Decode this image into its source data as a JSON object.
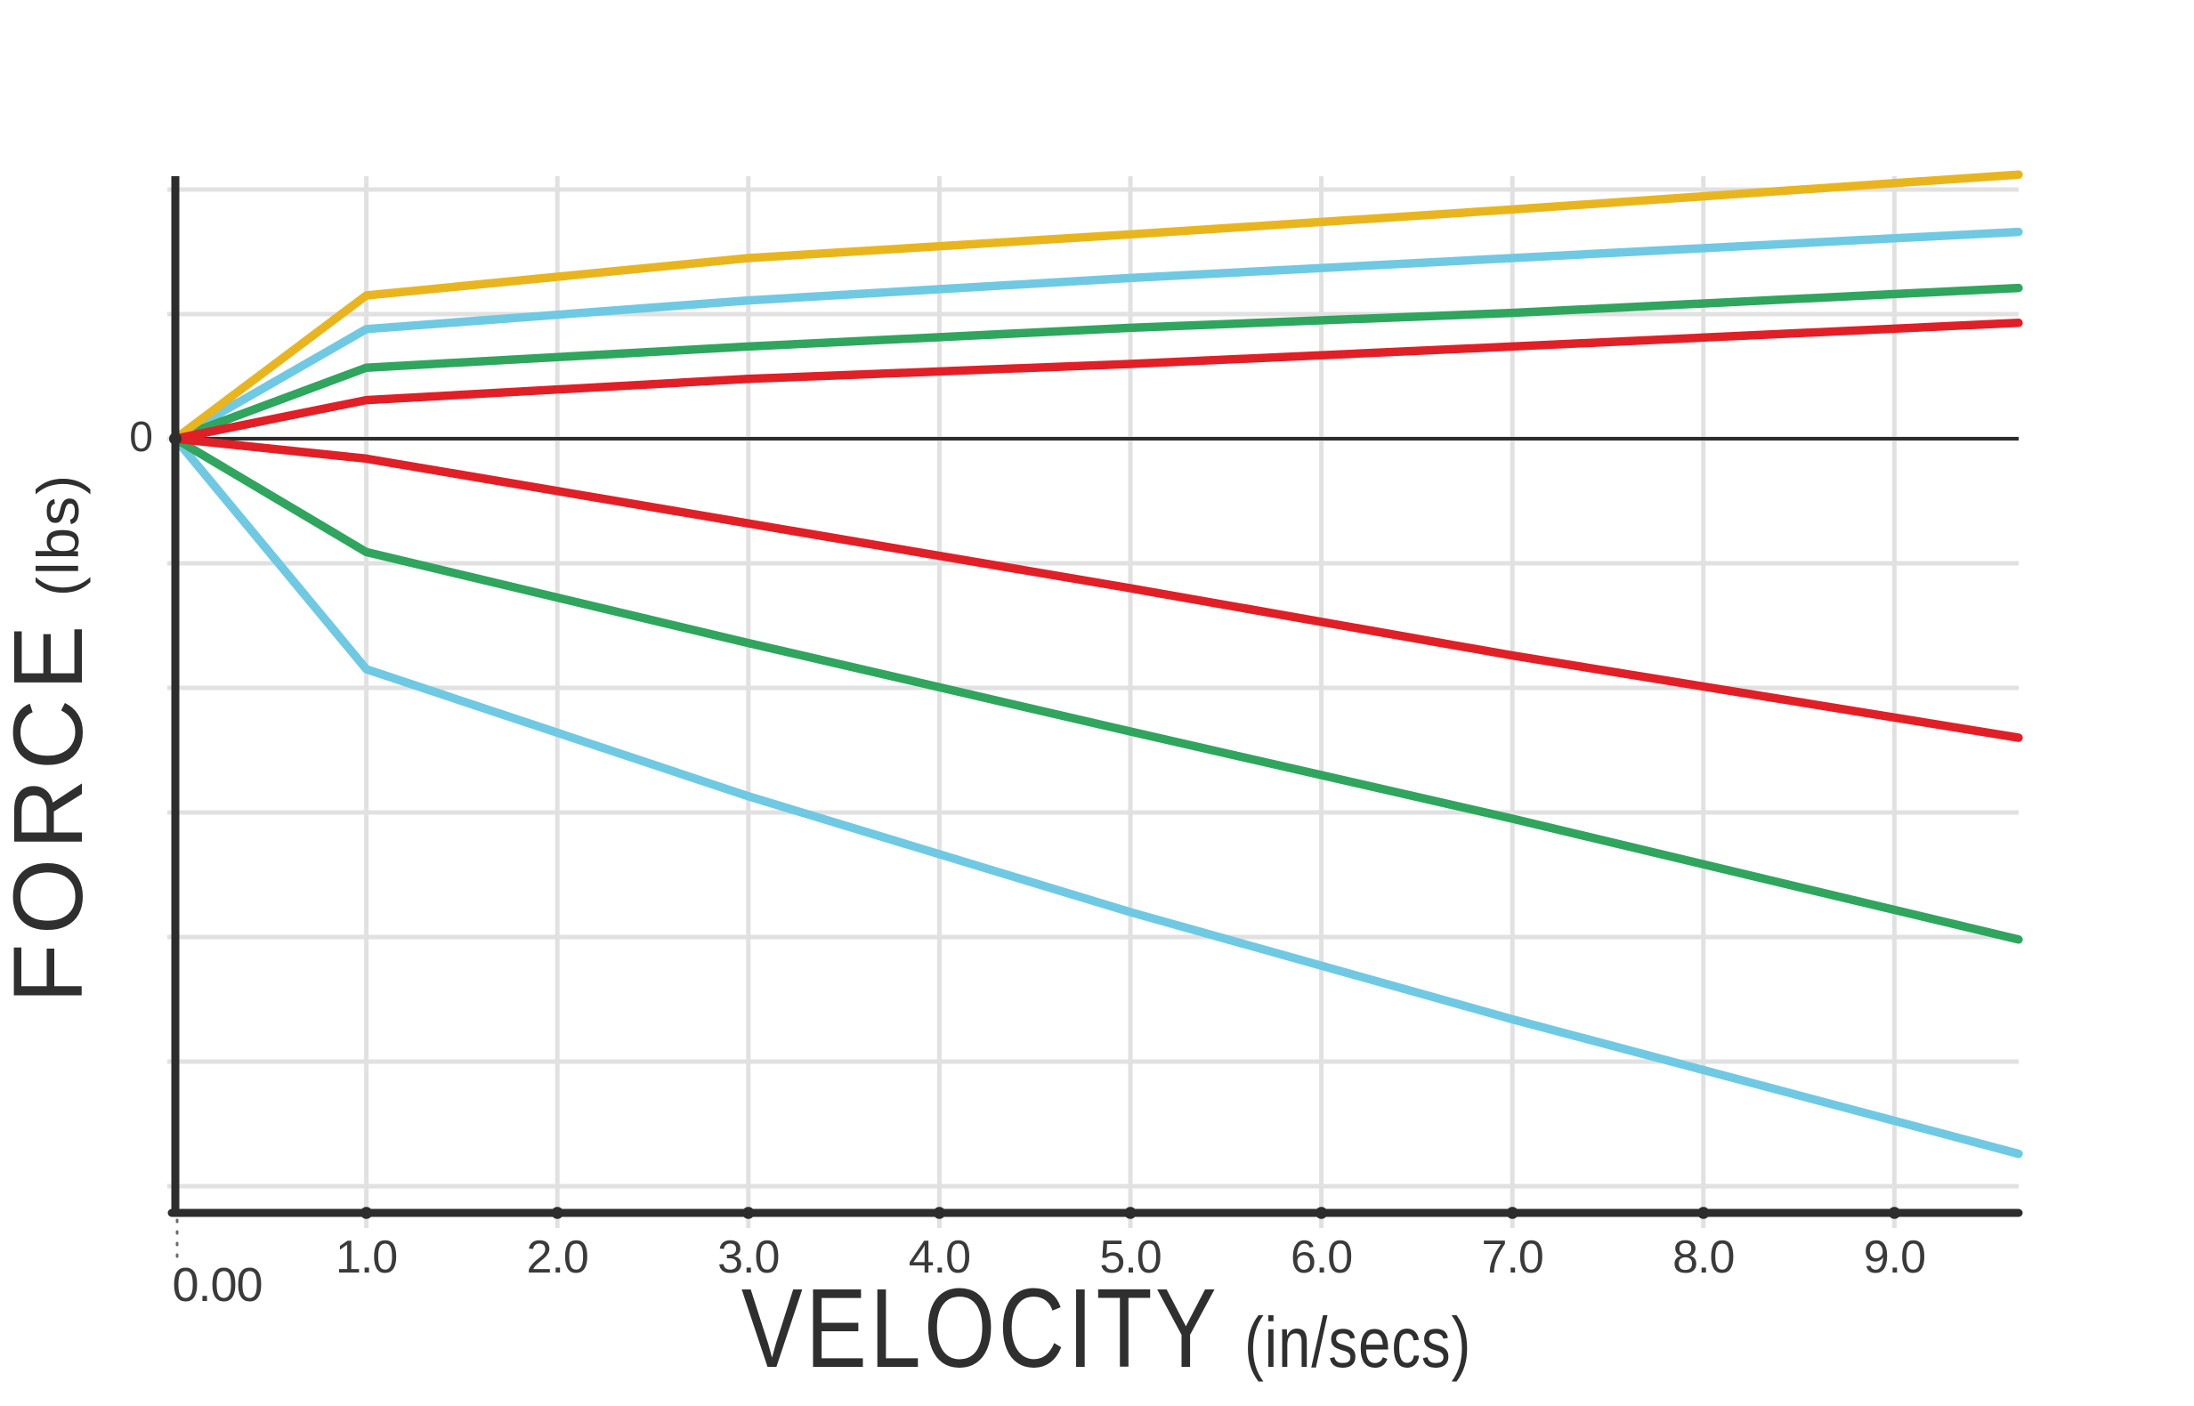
{
  "axes": {
    "x": {
      "title": "VELOCITY",
      "unit": "(in/secs)",
      "origin_label": "0.00",
      "ticks": [
        {
          "value": 1,
          "label": "1.0"
        },
        {
          "value": 2,
          "label": "2.0"
        },
        {
          "value": 3,
          "label": "3.0"
        },
        {
          "value": 4,
          "label": "4.0"
        },
        {
          "value": 5,
          "label": "5.0"
        },
        {
          "value": 6,
          "label": "6.0"
        },
        {
          "value": 7,
          "label": "7.0"
        },
        {
          "value": 8,
          "label": "8.0"
        },
        {
          "value": 9,
          "label": "9.0"
        }
      ]
    },
    "y": {
      "title": "FORCE",
      "unit": "(lbs)",
      "zero_label": "0"
    }
  },
  "chart_data": {
    "type": "line",
    "title": "",
    "xlabel": "VELOCITY (in/secs)",
    "ylabel": "FORCE (lbs)",
    "xlim": [
      0,
      9.67
    ],
    "ylim_grid_units": [
      -6.25,
      2.13
    ],
    "x_tick_values": [
      1,
      2,
      3,
      4,
      5,
      6,
      7,
      8,
      9
    ],
    "x_tick_labels": [
      "1.0",
      "2.0",
      "3.0",
      "4.0",
      "5.0",
      "6.0",
      "7.0",
      "8.0",
      "9.0"
    ],
    "y_tick_labels": [
      "0"
    ],
    "y_gridline_step_units": 1,
    "y_note": "y axis labeled only at 0; series values estimated in horizontal-gridline units above/below zero",
    "grid": true,
    "legend": false,
    "series": [
      {
        "name": "cyan-positive",
        "color": "#6FC9E2",
        "points": [
          [
            0,
            0
          ],
          [
            1,
            0.88
          ],
          [
            3,
            1.11
          ],
          [
            5,
            1.29
          ],
          [
            7,
            1.45
          ],
          [
            9.65,
            1.66
          ]
        ]
      },
      {
        "name": "green-positive",
        "color": "#2FA55E",
        "points": [
          [
            0,
            0
          ],
          [
            1,
            0.57
          ],
          [
            3,
            0.74
          ],
          [
            5,
            0.89
          ],
          [
            7,
            1.01
          ],
          [
            9.65,
            1.21
          ]
        ]
      },
      {
        "name": "yellow-positive",
        "color": "#E9B51F",
        "points": [
          [
            0,
            0
          ],
          [
            1,
            1.15
          ],
          [
            3,
            1.45
          ],
          [
            5,
            1.64
          ],
          [
            7,
            1.84
          ],
          [
            9.65,
            2.12
          ]
        ]
      },
      {
        "name": "red-positive",
        "color": "#E11F26",
        "points": [
          [
            0,
            0
          ],
          [
            1,
            0.31
          ],
          [
            3,
            0.48
          ],
          [
            5,
            0.6
          ],
          [
            7,
            0.74
          ],
          [
            9.65,
            0.93
          ]
        ]
      },
      {
        "name": "cyan-negative",
        "color": "#6FC9E2",
        "points": [
          [
            0,
            0
          ],
          [
            1,
            -1.85
          ],
          [
            3,
            -2.87
          ],
          [
            5,
            -3.8
          ],
          [
            7,
            -4.66
          ],
          [
            9.65,
            -5.74
          ]
        ]
      },
      {
        "name": "green-negative",
        "color": "#2FA55E",
        "points": [
          [
            0,
            0
          ],
          [
            1,
            -0.91
          ],
          [
            3,
            -1.64
          ],
          [
            5,
            -2.35
          ],
          [
            7,
            -3.05
          ],
          [
            9.65,
            -4.02
          ]
        ]
      },
      {
        "name": "red-negative",
        "color": "#E11F26",
        "points": [
          [
            0,
            0
          ],
          [
            1,
            -0.16
          ],
          [
            3,
            -0.68
          ],
          [
            5,
            -1.2
          ],
          [
            7,
            -1.74
          ],
          [
            9.65,
            -2.4
          ]
        ]
      }
    ]
  },
  "colors": {
    "background": "#FFFFFF",
    "axis": "#2D2D2D",
    "grid": "#E1E1E1",
    "tick_text": "#3A3A3A",
    "title_text": "#2F2F2F",
    "dotted_leader": "#6B6B6B",
    "yellow": "#E9B51F",
    "cyan": "#6FC9E2",
    "green": "#2FA55E",
    "red": "#E11F26"
  }
}
